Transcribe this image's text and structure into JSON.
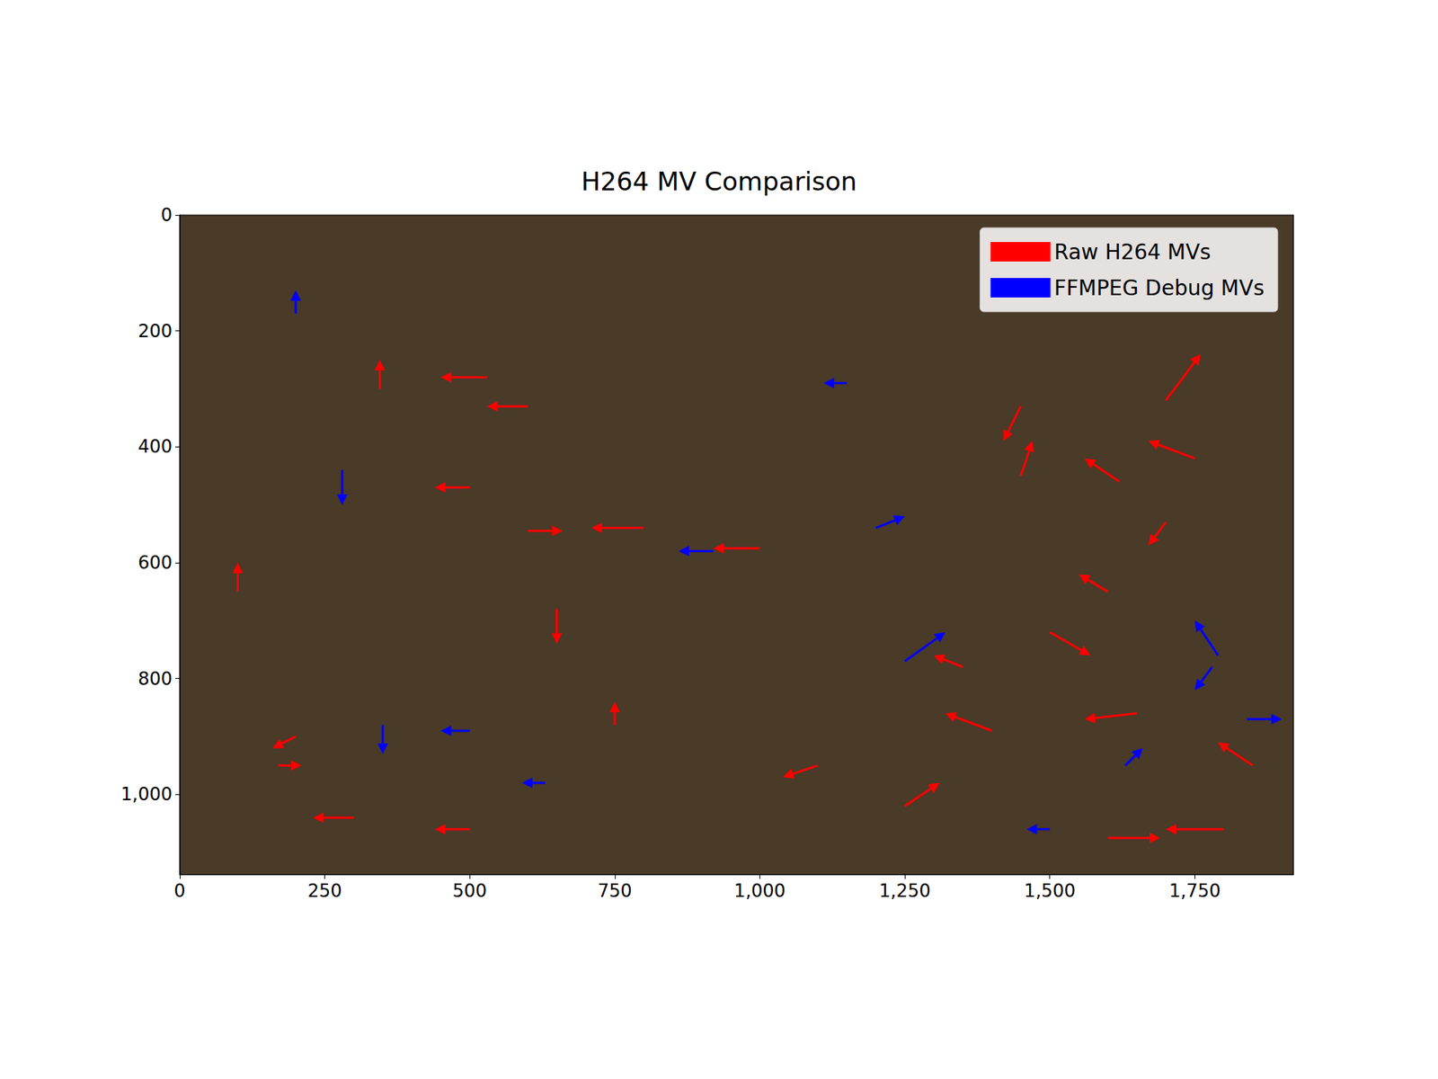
{
  "chart_data": {
    "type": "quiver",
    "title": "H264 MV Comparison",
    "xlim": [
      0,
      1920
    ],
    "xticks": [
      0,
      250,
      500,
      750,
      1000,
      1250,
      1500,
      1750
    ],
    "ylim": [
      1138,
      0
    ],
    "yticks": [
      0,
      200,
      400,
      600,
      800,
      1000
    ],
    "grid": false,
    "legend": "upper right",
    "series": [
      {
        "name": "Raw H264 MVs",
        "color": "#ff0000",
        "x": [
          530,
          600,
          500,
          800,
          1000,
          600,
          1450,
          1700,
          1750,
          1620,
          1600,
          1500,
          1400,
          1100,
          1650,
          1800,
          1600,
          1250,
          100,
          200,
          300,
          500,
          170,
          650,
          345,
          1700,
          1350,
          1850,
          750,
          1450
        ],
        "y": [
          280,
          330,
          470,
          540,
          575,
          545,
          330,
          320,
          420,
          460,
          650,
          720,
          890,
          950,
          860,
          1060,
          1075,
          1020,
          650,
          900,
          1040,
          1060,
          950,
          680,
          300,
          530,
          780,
          950,
          880,
          450
        ],
        "u": [
          -80,
          -70,
          -60,
          -90,
          -80,
          60,
          -30,
          60,
          -80,
          -60,
          -50,
          70,
          -80,
          -60,
          -90,
          -100,
          90,
          60,
          0,
          -40,
          -70,
          -60,
          40,
          0,
          0,
          -30,
          -50,
          -60,
          0,
          20
        ],
        "v": [
          0,
          0,
          0,
          0,
          0,
          0,
          60,
          -80,
          -30,
          -40,
          -30,
          40,
          -30,
          20,
          10,
          0,
          0,
          -40,
          -50,
          20,
          0,
          0,
          0,
          60,
          -50,
          40,
          -20,
          -40,
          -40,
          -60
        ]
      },
      {
        "name": "FFMPEG Debug MVs",
        "color": "#0000ff",
        "x": [
          1790,
          1780,
          1250,
          1200,
          1840,
          920,
          500,
          350,
          1150,
          630,
          200,
          280,
          1500,
          1630
        ],
        "y": [
          760,
          780,
          770,
          540,
          870,
          580,
          890,
          880,
          290,
          980,
          170,
          440,
          1060,
          950
        ],
        "u": [
          -40,
          -30,
          70,
          50,
          60,
          -60,
          -50,
          0,
          -40,
          -40,
          0,
          0,
          -40,
          30
        ],
        "v": [
          -60,
          40,
          -50,
          -20,
          0,
          0,
          0,
          50,
          0,
          0,
          -40,
          60,
          0,
          -30
        ]
      }
    ]
  }
}
